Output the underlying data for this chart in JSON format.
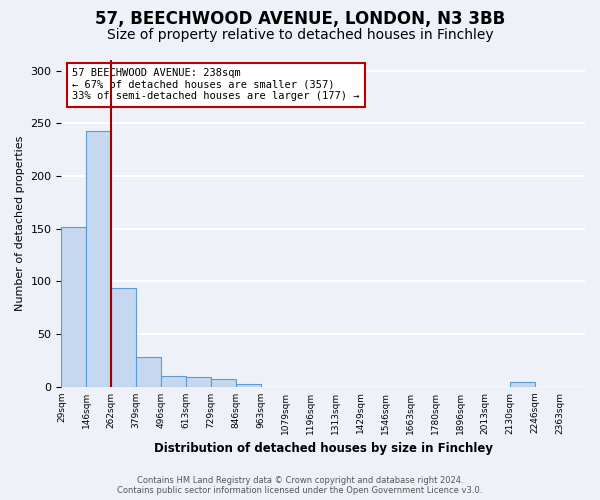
{
  "title": "57, BEECHWOOD AVENUE, LONDON, N3 3BB",
  "subtitle": "Size of property relative to detached houses in Finchley",
  "bar_values": [
    152,
    243,
    94,
    28,
    10,
    9,
    7,
    3,
    0,
    0,
    0,
    0,
    0,
    0,
    0,
    0,
    0,
    0,
    4,
    0,
    0
  ],
  "bin_labels": [
    "29sqm",
    "146sqm",
    "262sqm",
    "379sqm",
    "496sqm",
    "613sqm",
    "729sqm",
    "846sqm",
    "963sqm",
    "1079sqm",
    "1196sqm",
    "1313sqm",
    "1429sqm",
    "1546sqm",
    "1663sqm",
    "1780sqm",
    "1896sqm",
    "2013sqm",
    "2130sqm",
    "2246sqm",
    "2363sqm"
  ],
  "bar_color": "#c5d8f0",
  "bar_edge_color": "#5b9bd5",
  "property_line_color": "#a00000",
  "annotation_text": "57 BEECHWOOD AVENUE: 238sqm\n← 67% of detached houses are smaller (357)\n33% of semi-detached houses are larger (177) →",
  "annotation_box_color": "white",
  "annotation_box_edge_color": "#c00000",
  "ylabel": "Number of detached properties",
  "xlabel": "Distribution of detached houses by size in Finchley",
  "ylim": [
    0,
    310
  ],
  "yticks": [
    0,
    50,
    100,
    150,
    200,
    250,
    300
  ],
  "footer1": "Contains HM Land Registry data © Crown copyright and database right 2024.",
  "footer2": "Contains public sector information licensed under the Open Government Licence v3.0.",
  "bg_color": "#eef2f8",
  "grid_color": "white",
  "title_fontsize": 12,
  "subtitle_fontsize": 10
}
